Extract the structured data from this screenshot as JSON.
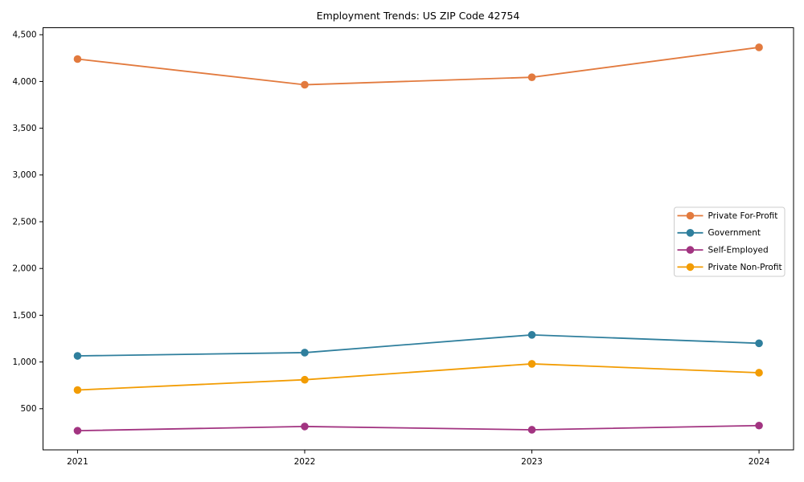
{
  "figure": {
    "background": "#ffffff",
    "spine_color": "#000000",
    "text_color": "#000000",
    "legend_border_color": "#cccccc",
    "legend_background": "#ffffff"
  },
  "chart_data": {
    "type": "line",
    "title": "Employment Trends: US ZIP Code 42754",
    "xlabel": "",
    "ylabel": "",
    "x": [
      2021,
      2022,
      2023,
      2024
    ],
    "xtick_labels": [
      "2021",
      "2022",
      "2023",
      "2024"
    ],
    "series": [
      {
        "name": "Private For-Profit",
        "color": "#e27a3e",
        "marker": "circle",
        "values": [
          4240,
          3965,
          4045,
          4365
        ]
      },
      {
        "name": "Government",
        "color": "#2f7f9d",
        "marker": "circle",
        "values": [
          1065,
          1100,
          1290,
          1200
        ]
      },
      {
        "name": "Self-Employed",
        "color": "#a23481",
        "marker": "circle",
        "values": [
          265,
          310,
          275,
          320
        ]
      },
      {
        "name": "Private Non-Profit",
        "color": "#f29c03",
        "marker": "circle",
        "values": [
          700,
          810,
          980,
          885
        ]
      }
    ],
    "ylim": [
      60,
      4575
    ],
    "yticks": [
      500,
      1000,
      1500,
      2000,
      2500,
      3000,
      3500,
      4000,
      4500
    ],
    "ytick_labels": [
      "500",
      "1,000",
      "1,500",
      "2,000",
      "2,500",
      "3,000",
      "3,500",
      "4,000",
      "4,500"
    ],
    "grid": false,
    "legend": {
      "position": "center right"
    }
  }
}
